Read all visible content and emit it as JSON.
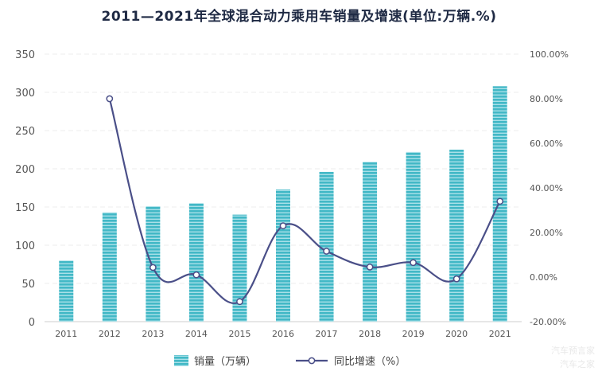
{
  "chart_data": {
    "type": "bar",
    "title": "2011—2021年全球混合动力乘用车销量及增速(单位:万辆.%)",
    "categories": [
      "2011",
      "2012",
      "2013",
      "2014",
      "2015",
      "2016",
      "2017",
      "2018",
      "2019",
      "2020",
      "2021"
    ],
    "series": [
      {
        "name": "销量（万辆）",
        "type": "bar",
        "axis": "left",
        "color": "#4bbfcc",
        "values": [
          80,
          143,
          151,
          155,
          140,
          173,
          196,
          209,
          222,
          225,
          308
        ]
      },
      {
        "name": "同比增速（%）",
        "type": "line",
        "axis": "right",
        "color": "#4a4f88",
        "values": [
          null,
          80.0,
          4.3,
          1.0,
          -11.0,
          23.0,
          11.6,
          4.5,
          6.5,
          -0.8,
          34.0
        ]
      }
    ],
    "ylim_left": [
      0,
      350
    ],
    "yticks_left": [
      "0",
      "50",
      "100",
      "150",
      "200",
      "250",
      "300",
      "350"
    ],
    "ylim_right": [
      -20,
      100
    ],
    "yticks_right": [
      "-20.00%",
      "0.00%",
      "20.00%",
      "40.00%",
      "60.00%",
      "80.00%",
      "100.00%"
    ],
    "grid": true,
    "legend": "bottom-center"
  },
  "watermark": {
    "line1": "汽车预言家",
    "line2": "汽车之家"
  }
}
